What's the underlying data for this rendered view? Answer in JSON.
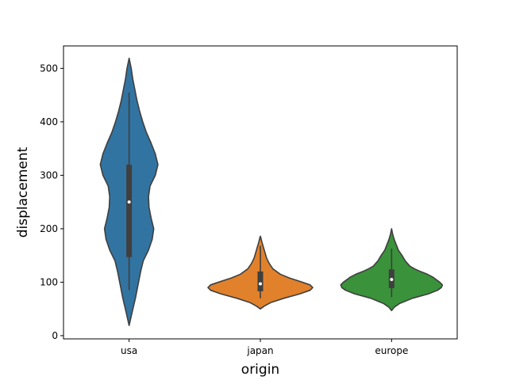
{
  "chart_data": {
    "type": "violin",
    "title": "",
    "xlabel": "origin",
    "ylabel": "displacement",
    "categories": [
      "usa",
      "japan",
      "europe"
    ],
    "ylim": [
      -6,
      542
    ],
    "yticks": [
      0,
      100,
      200,
      300,
      400,
      500
    ],
    "grid": false,
    "legend": "none",
    "series": [
      {
        "category": "usa",
        "color": "#3274a1",
        "density_y": [
          19,
          45,
          70,
          85,
          100,
          120,
          140,
          160,
          180,
          200,
          220,
          240,
          260,
          280,
          300,
          320,
          340,
          360,
          380,
          400,
          420,
          440,
          460,
          480,
          500,
          519
        ],
        "density_w": [
          0,
          0.06,
          0.12,
          0.15,
          0.18,
          0.22,
          0.27,
          0.37,
          0.44,
          0.47,
          0.42,
          0.38,
          0.37,
          0.4,
          0.5,
          0.55,
          0.5,
          0.42,
          0.33,
          0.26,
          0.2,
          0.15,
          0.11,
          0.07,
          0.04,
          0
        ],
        "whisker_low": 85,
        "q1": 147,
        "median": 250,
        "q3": 320,
        "whisker_high": 455
      },
      {
        "category": "japan",
        "color": "#e1812c",
        "density_y": [
          50,
          55,
          62,
          70,
          78,
          85,
          90,
          95,
          100,
          108,
          115,
          125,
          135,
          145,
          155,
          165,
          175,
          183,
          186
        ],
        "density_w": [
          0,
          0.07,
          0.2,
          0.45,
          0.75,
          0.95,
          1.0,
          0.95,
          0.8,
          0.55,
          0.38,
          0.24,
          0.17,
          0.12,
          0.09,
          0.06,
          0.03,
          0.01,
          0
        ],
        "whisker_low": 70,
        "q1": 83,
        "median": 97,
        "q3": 120,
        "whisker_high": 168
      },
      {
        "category": "europe",
        "color": "#3a923a",
        "density_y": [
          47,
          53,
          60,
          70,
          78,
          85,
          90,
          95,
          100,
          105,
          110,
          115,
          120,
          125,
          130,
          140,
          150,
          160,
          170,
          180,
          190,
          200
        ],
        "density_w": [
          0,
          0.05,
          0.15,
          0.4,
          0.7,
          0.88,
          0.95,
          0.97,
          0.92,
          0.85,
          0.78,
          0.68,
          0.55,
          0.44,
          0.35,
          0.26,
          0.2,
          0.13,
          0.09,
          0.05,
          0.02,
          0
        ],
        "whisker_low": 72,
        "q1": 89,
        "median": 105,
        "q3": 124,
        "whisker_high": 163
      }
    ]
  }
}
